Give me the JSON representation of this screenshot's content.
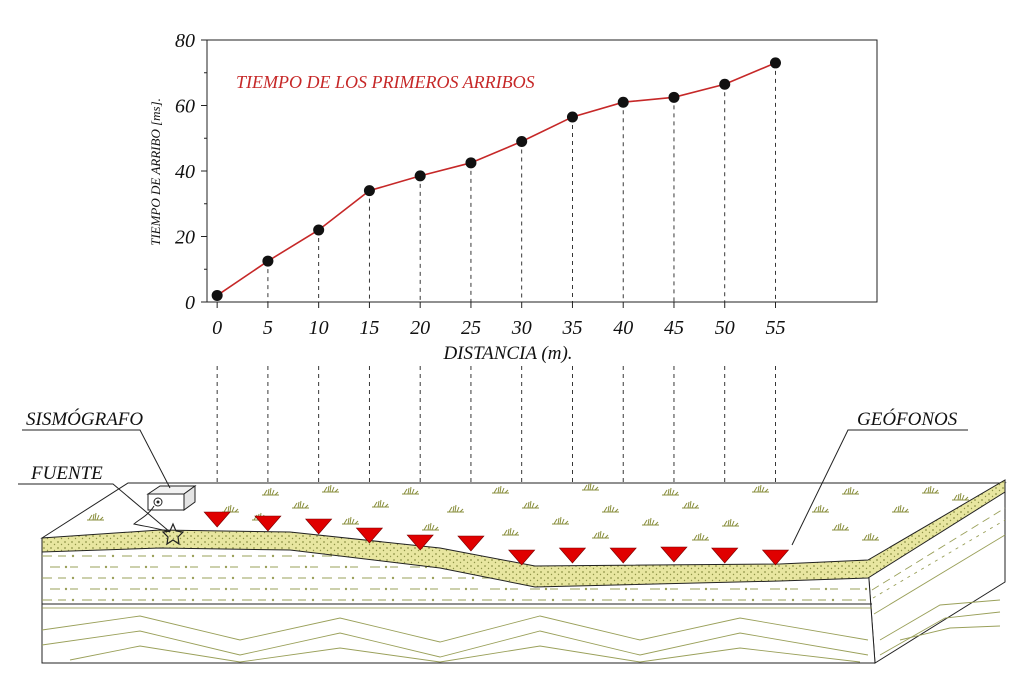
{
  "chart_data": {
    "type": "line",
    "title": "TIEMPO DE LOS PRIMEROS ARRIBOS",
    "xlabel": "DISTANCIA (m).",
    "ylabel": "TIEMPO DE ARRIBO [ms].",
    "x": [
      0,
      5,
      10,
      15,
      20,
      25,
      30,
      35,
      40,
      45,
      50,
      55
    ],
    "xticks": [
      "0",
      "5",
      "10",
      "15",
      "20",
      "25",
      "30",
      "35",
      "40",
      "45",
      "50",
      "55"
    ],
    "yticks": [
      "0",
      "20",
      "40",
      "60",
      "80"
    ],
    "series": [
      {
        "values": [
          2,
          12.5,
          22,
          34,
          38.5,
          42.5,
          49,
          56.5,
          61,
          62.5,
          66.5,
          73
        ]
      }
    ],
    "xlim": [
      -1,
      65
    ],
    "ylim": [
      0,
      80
    ],
    "grid": false,
    "line_color": "#c62828",
    "marker_color": "#111111"
  },
  "labels": {
    "seismograph": "SISMÓGRAFO",
    "source": "FUENTE",
    "geophones": "GEÓFONOS"
  },
  "colors": {
    "geophone": "#e00000",
    "surface_layer": "#e8e6a0",
    "layer_line": "#8a8f3e"
  }
}
